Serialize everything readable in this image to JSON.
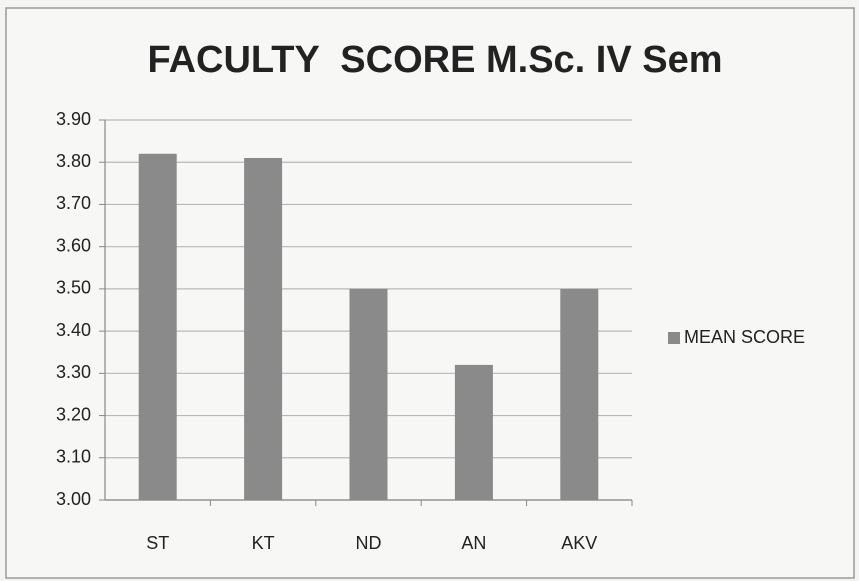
{
  "chart_data": {
    "type": "bar",
    "title": "FACULTY  SCORE M.Sc. IV Sem",
    "categories": [
      "ST",
      "KT",
      "ND",
      "AN",
      "AKV"
    ],
    "series": [
      {
        "name": "MEAN SCORE",
        "color": "#8a8a8a",
        "values": [
          3.82,
          3.81,
          3.5,
          3.32,
          3.5
        ]
      }
    ],
    "ylim": [
      3.0,
      3.9
    ],
    "yticks": [
      {
        "value": 3.0,
        "label": "3.00"
      },
      {
        "value": 3.1,
        "label": "3.10"
      },
      {
        "value": 3.2,
        "label": "3.20"
      },
      {
        "value": 3.3,
        "label": "3.30"
      },
      {
        "value": 3.4,
        "label": "3.40"
      },
      {
        "value": 3.5,
        "label": "3.50"
      },
      {
        "value": 3.6,
        "label": "3.60"
      },
      {
        "value": 3.7,
        "label": "3.70"
      },
      {
        "value": 3.8,
        "label": "3.80"
      },
      {
        "value": 3.9,
        "label": "3.90"
      }
    ],
    "grid": true,
    "legend": "right"
  }
}
